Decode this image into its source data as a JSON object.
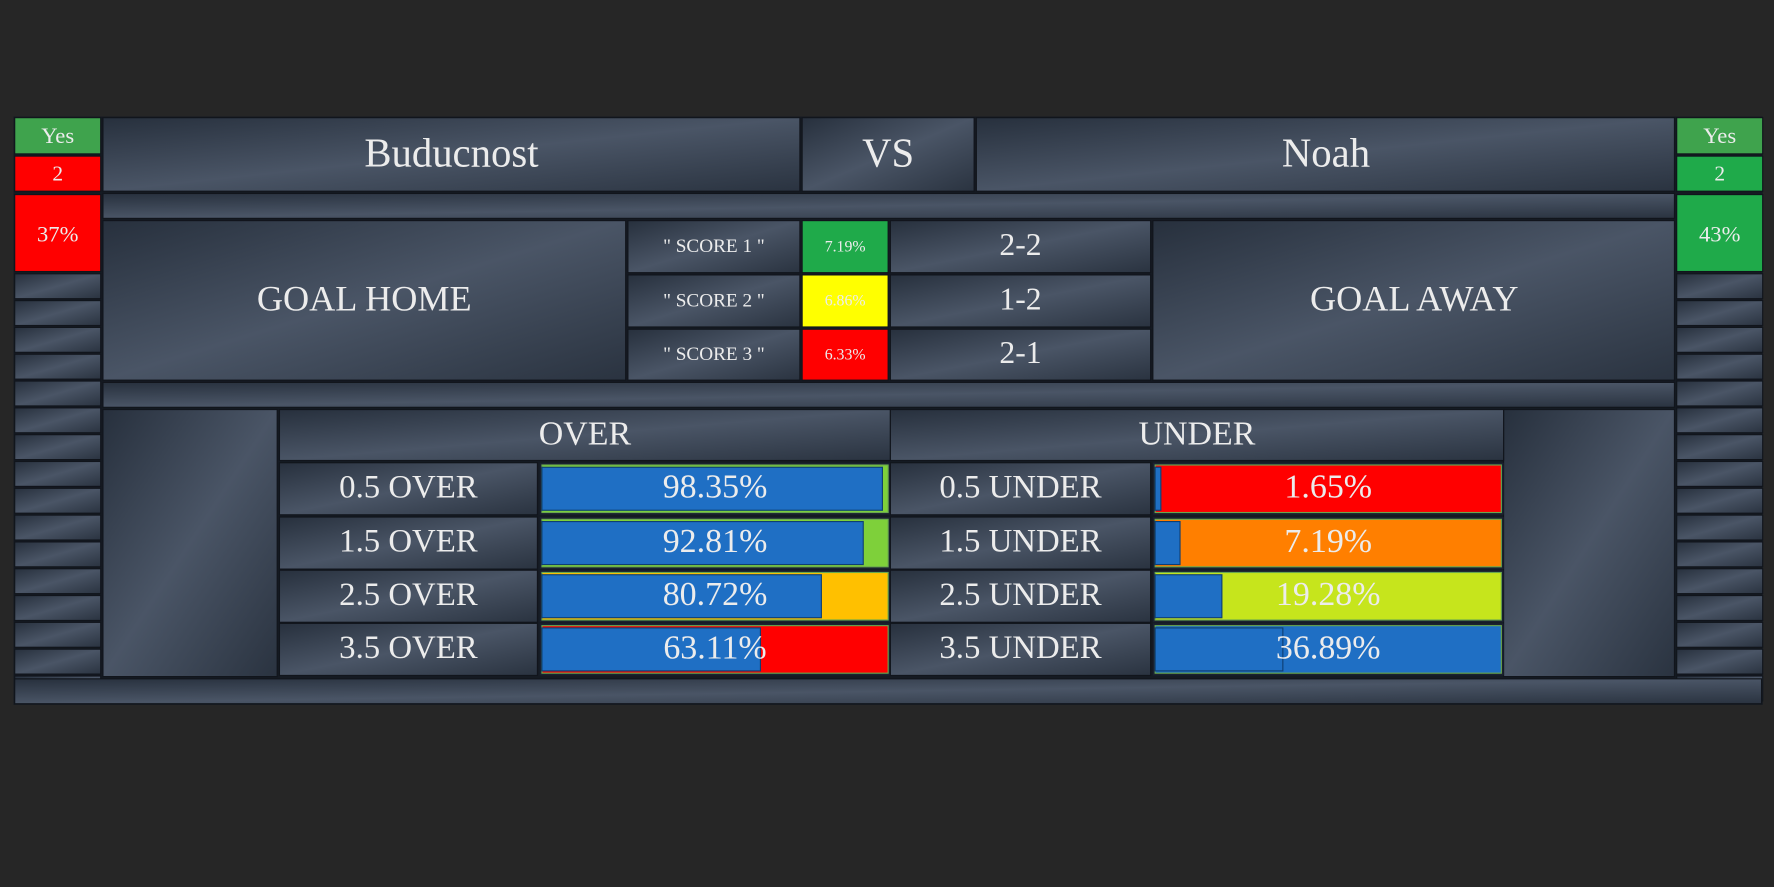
{
  "home": {
    "flag": "Yes",
    "goals": "2",
    "percent": "37%",
    "team": "Buducnost",
    "flag_color": "#3fa34d",
    "goals_color": "#ff0000",
    "percent_color": "#ff0000"
  },
  "vs": "VS",
  "away": {
    "flag": "Yes",
    "goals": "2",
    "percent": "43%",
    "team": "Noah",
    "flag_color": "#3fa34d",
    "goals_color": "#1faa4a",
    "percent_color": "#1faa4a"
  },
  "goal_home": "GOAL HOME",
  "goal_away": "GOAL AWAY",
  "scores": [
    {
      "label": "\" SCORE 1 \"",
      "probability": "7.19%",
      "score": "2-2",
      "color": "#1faa4a"
    },
    {
      "label": "\" SCORE 2 \"",
      "probability": "6.86%",
      "score": "1-2",
      "color": "#ffff00"
    },
    {
      "label": "\" SCORE 3 \"",
      "probability": "6.33%",
      "score": "2-1",
      "color": "#ff0000"
    }
  ],
  "over": {
    "title": "OVER",
    "xlim": [
      0,
      100
    ],
    "categories": [
      "0.5 OVER",
      "1.5 OVER",
      "2.5 OVER",
      "3.5 OVER"
    ],
    "values": [
      98.35,
      92.81,
      80.72,
      63.11
    ],
    "value_labels": [
      "98.35%",
      "92.81%",
      "80.72%",
      "63.11%"
    ],
    "bar_color": "#1f6fc4",
    "track_colors": [
      "#7ed03a",
      "#7ed03a",
      "#ffc000",
      "#ff0000"
    ]
  },
  "under": {
    "title": "UNDER",
    "xlim": [
      0,
      100
    ],
    "categories": [
      "0.5 UNDER",
      "1.5 UNDER",
      "2.5 UNDER",
      "3.5 UNDER"
    ],
    "values": [
      1.65,
      7.19,
      19.28,
      36.89
    ],
    "value_labels": [
      "1.65%",
      "7.19%",
      "19.28%",
      "36.89%"
    ],
    "bar_color": "#1f6fc4",
    "track_colors": [
      "#ff0000",
      "#ff7f00",
      "#c6e51c",
      "#1f6fc4"
    ]
  }
}
